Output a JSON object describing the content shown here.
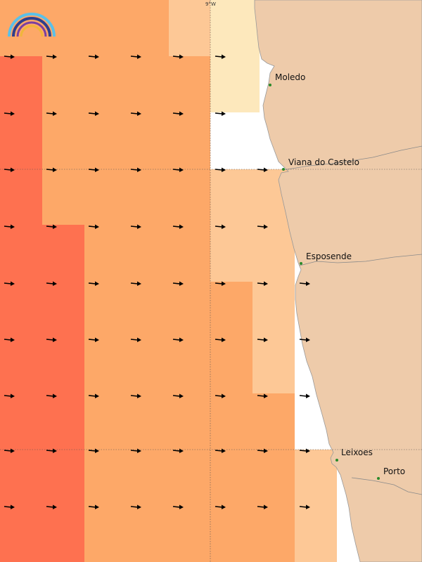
{
  "map": {
    "grid_label": "9°W",
    "logo": "rainbow-logo",
    "palette": {
      "cell_1": "#fde8bc",
      "cell_2": "#fdc896",
      "cell_3": "#fda868",
      "cell_4": "#fe7150",
      "land": "#eecbaa",
      "water_nodata": "#ffffff",
      "place_dot": "#2a8a2a",
      "arrow": "#000000"
    },
    "places": [
      {
        "name": "Moledo"
      },
      {
        "name": "Viana do Castelo"
      },
      {
        "name": "Esposende"
      },
      {
        "name": "Leixoes"
      },
      {
        "name": "Porto"
      }
    ],
    "wind_direction": "east"
  }
}
